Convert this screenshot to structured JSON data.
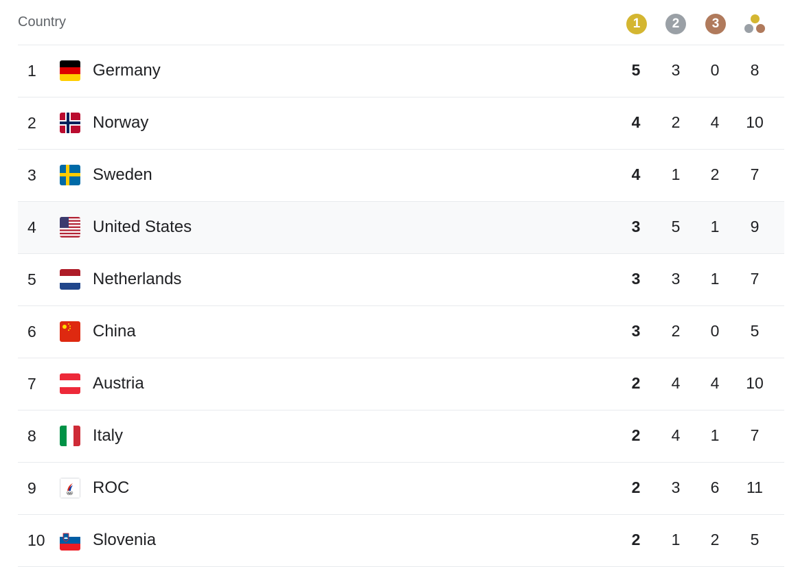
{
  "header": {
    "country_label": "Country",
    "gold_badge": "1",
    "silver_badge": "2",
    "bronze_badge": "3",
    "total_icon": "medals-total-icon"
  },
  "colors": {
    "gold": "#d4b631",
    "silver": "#9aa0a6",
    "bronze": "#b07a5c",
    "highlight_row": "#f8f9fa",
    "divider": "#e8eaed"
  },
  "rows": [
    {
      "rank": "1",
      "country": "Germany",
      "flag": "germany-flag-icon",
      "gold": "5",
      "silver": "3",
      "bronze": "0",
      "total": "8"
    },
    {
      "rank": "2",
      "country": "Norway",
      "flag": "norway-flag-icon",
      "gold": "4",
      "silver": "2",
      "bronze": "4",
      "total": "10"
    },
    {
      "rank": "3",
      "country": "Sweden",
      "flag": "sweden-flag-icon",
      "gold": "4",
      "silver": "1",
      "bronze": "2",
      "total": "7"
    },
    {
      "rank": "4",
      "country": "United States",
      "flag": "united-states-flag-icon",
      "gold": "3",
      "silver": "5",
      "bronze": "1",
      "total": "9"
    },
    {
      "rank": "5",
      "country": "Netherlands",
      "flag": "netherlands-flag-icon",
      "gold": "3",
      "silver": "3",
      "bronze": "1",
      "total": "7"
    },
    {
      "rank": "6",
      "country": "China",
      "flag": "china-flag-icon",
      "gold": "3",
      "silver": "2",
      "bronze": "0",
      "total": "5"
    },
    {
      "rank": "7",
      "country": "Austria",
      "flag": "austria-flag-icon",
      "gold": "2",
      "silver": "4",
      "bronze": "4",
      "total": "10"
    },
    {
      "rank": "8",
      "country": "Italy",
      "flag": "italy-flag-icon",
      "gold": "2",
      "silver": "4",
      "bronze": "1",
      "total": "7"
    },
    {
      "rank": "9",
      "country": "ROC",
      "flag": "roc-emblem-icon",
      "gold": "2",
      "silver": "3",
      "bronze": "6",
      "total": "11"
    },
    {
      "rank": "10",
      "country": "Slovenia",
      "flag": "slovenia-flag-icon",
      "gold": "2",
      "silver": "1",
      "bronze": "2",
      "total": "5"
    }
  ]
}
